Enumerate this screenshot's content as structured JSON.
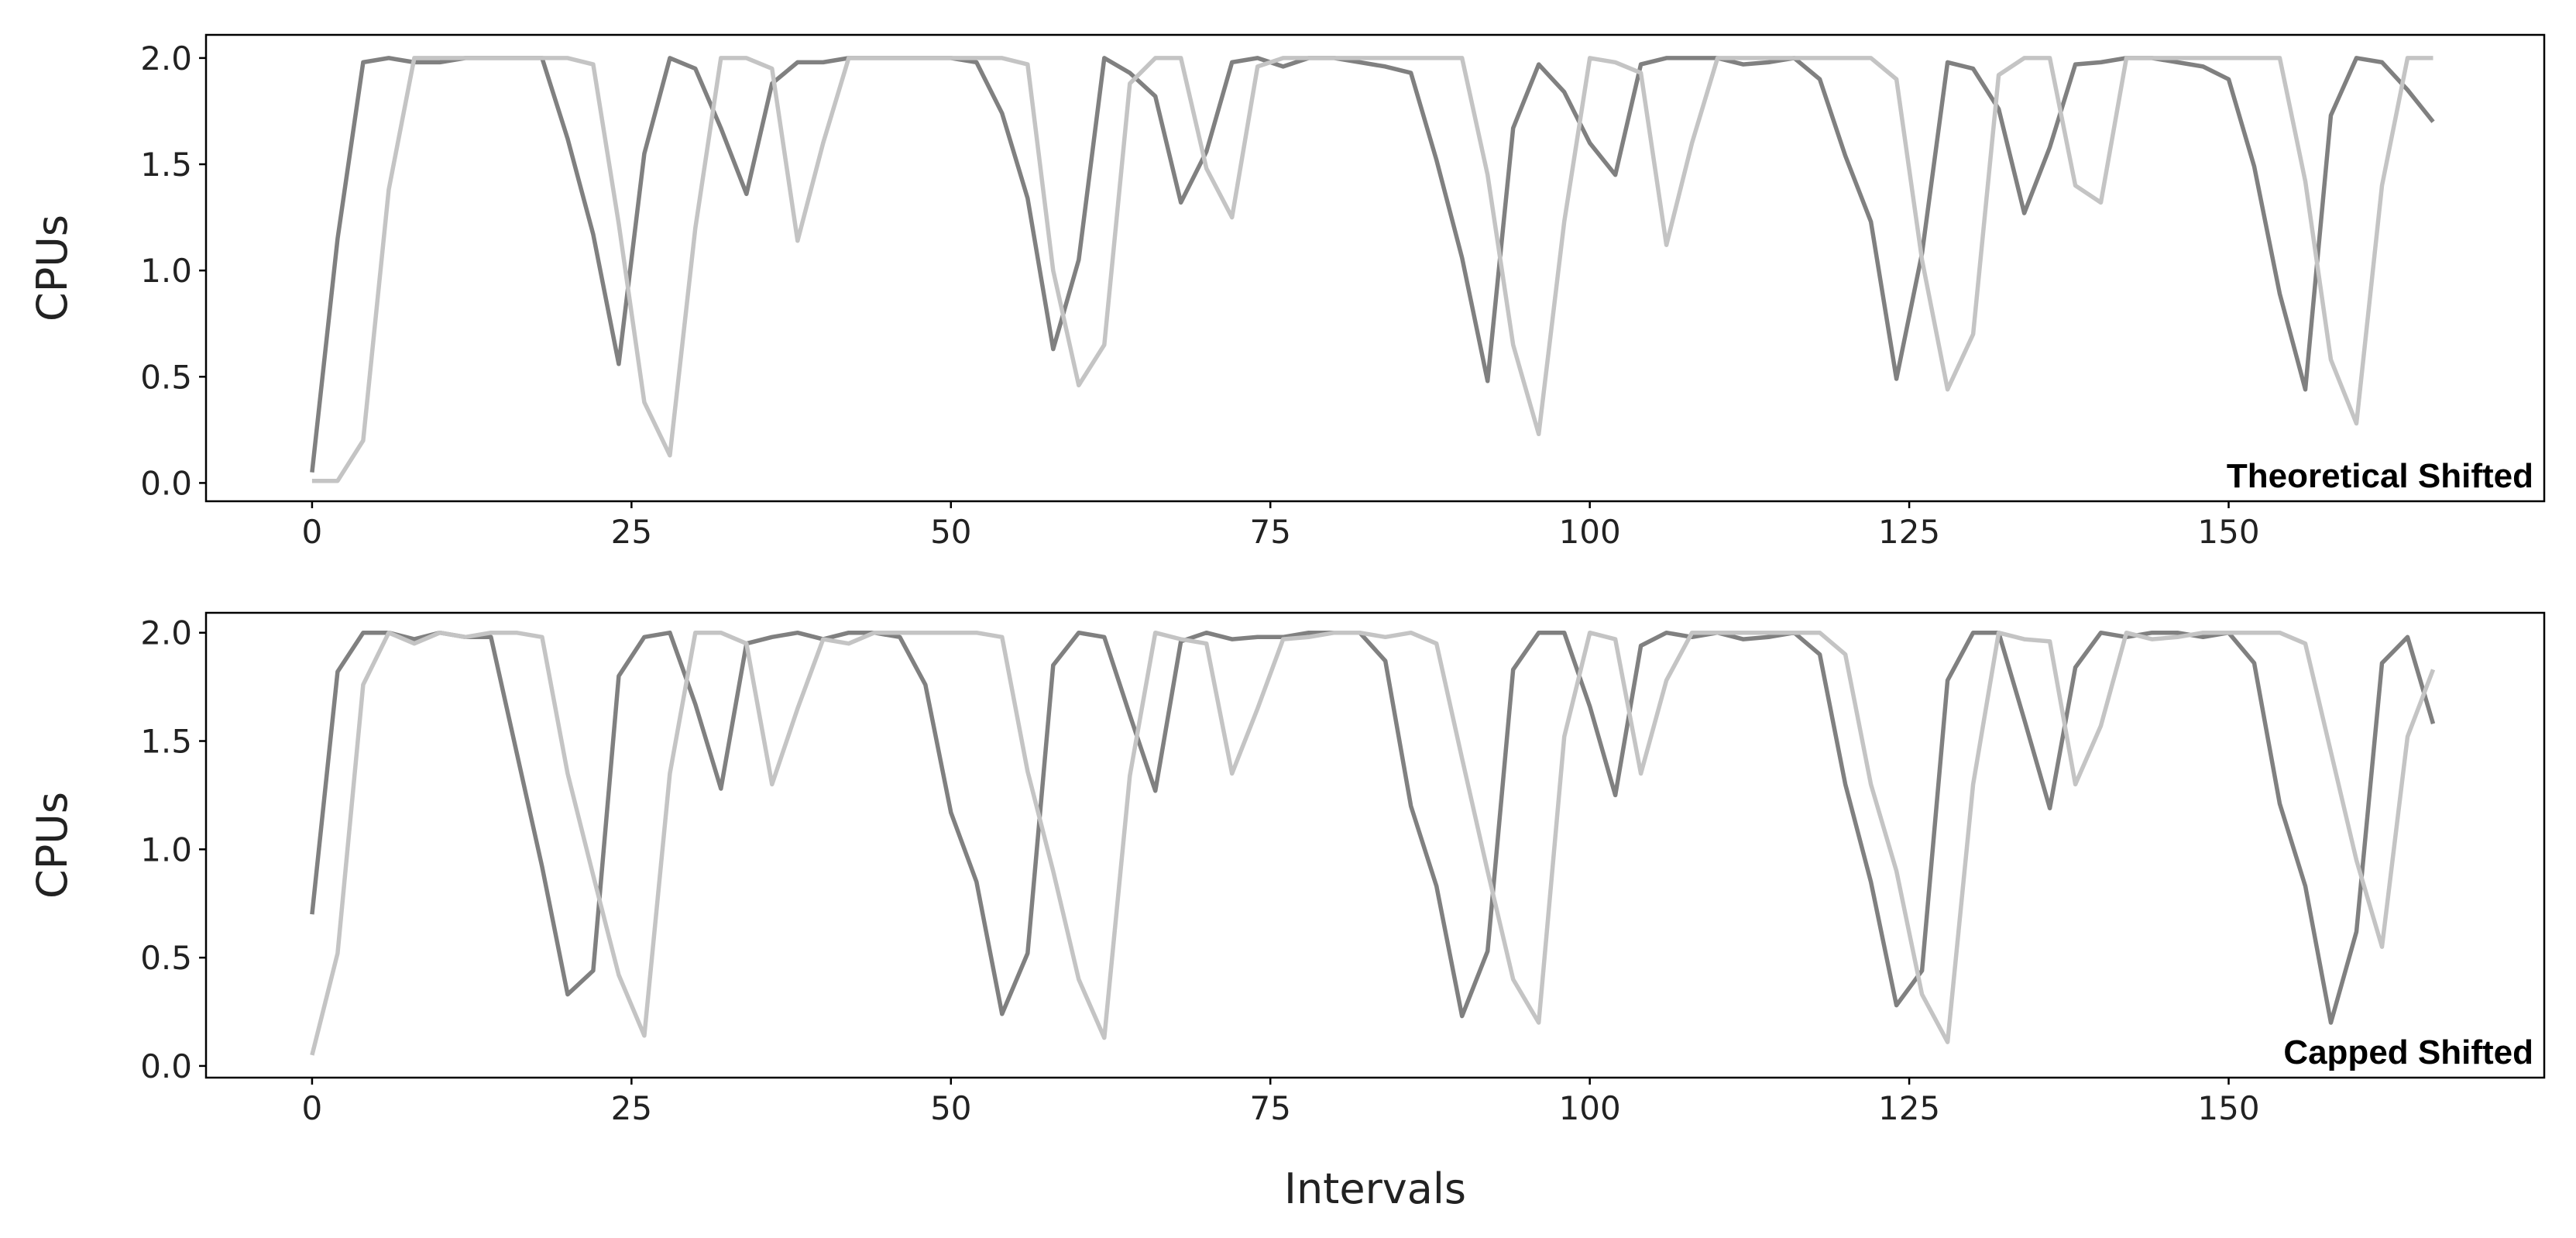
{
  "chart_data": [
    {
      "type": "line",
      "ylabel": "CPUs",
      "annotation": "Theoretical Shifted",
      "x": [
        0,
        2,
        4,
        6,
        8,
        10,
        12,
        14,
        16,
        18,
        20,
        22,
        24,
        26,
        28,
        30,
        32,
        34,
        36,
        38,
        40,
        42,
        44,
        46,
        48,
        50,
        52,
        54,
        56,
        58,
        60,
        62,
        64,
        66,
        68,
        70,
        72,
        74,
        76,
        78,
        80,
        82,
        84,
        86,
        88,
        90,
        92,
        94,
        96,
        98,
        100,
        102,
        104,
        106,
        108,
        110,
        112,
        114,
        116,
        118,
        120,
        122,
        124,
        126,
        128,
        130,
        132,
        134,
        136,
        138,
        140,
        142,
        144,
        146,
        148,
        150,
        152,
        154,
        156,
        158,
        160,
        162,
        164,
        166
      ],
      "series": [
        {
          "color": "#808080",
          "values": [
            0.05,
            1.15,
            1.98,
            2.0,
            1.98,
            1.98,
            2.0,
            2.0,
            2.0,
            2.0,
            1.62,
            1.17,
            0.56,
            1.55,
            2.0,
            1.95,
            1.67,
            1.36,
            1.88,
            1.98,
            1.98,
            2.0,
            2.0,
            2.0,
            2.0,
            2.0,
            1.98,
            1.74,
            1.34,
            0.63,
            1.05,
            2.0,
            1.93,
            1.82,
            1.32,
            1.56,
            1.98,
            2.0,
            1.96,
            2.0,
            2.0,
            1.98,
            1.96,
            1.93,
            1.52,
            1.06,
            0.48,
            1.67,
            1.97,
            1.84,
            1.6,
            1.45,
            1.97,
            2.0,
            2.0,
            2.0,
            1.97,
            1.98,
            2.0,
            1.9,
            1.54,
            1.23,
            0.49,
            1.08,
            1.98,
            1.95,
            1.76,
            1.27,
            1.58,
            1.97,
            1.98,
            2.0,
            2.0,
            1.98,
            1.96,
            1.9,
            1.49,
            0.89,
            0.44,
            1.73,
            2.0,
            1.98,
            1.85,
            1.7
          ]
        },
        {
          "color": "#c4c4c4",
          "values": [
            0.01,
            0.01,
            0.2,
            1.38,
            2.0,
            2.0,
            2.0,
            2.0,
            2.0,
            2.0,
            2.0,
            1.97,
            1.22,
            0.38,
            0.13,
            1.2,
            2.0,
            2.0,
            1.95,
            1.14,
            1.6,
            2.0,
            2.0,
            2.0,
            2.0,
            2.0,
            2.0,
            2.0,
            1.97,
            1.0,
            0.46,
            0.65,
            1.88,
            2.0,
            2.0,
            1.48,
            1.25,
            1.96,
            2.0,
            2.0,
            2.0,
            2.0,
            2.0,
            2.0,
            2.0,
            2.0,
            1.45,
            0.65,
            0.23,
            1.23,
            2.0,
            1.98,
            1.93,
            1.12,
            1.6,
            2.0,
            2.0,
            2.0,
            2.0,
            2.0,
            2.0,
            2.0,
            1.9,
            1.05,
            0.44,
            0.7,
            1.92,
            2.0,
            2.0,
            1.4,
            1.32,
            2.0,
            2.0,
            2.0,
            2.0,
            2.0,
            2.0,
            2.0,
            1.42,
            0.58,
            0.28,
            1.4,
            2.0,
            2.0
          ]
        }
      ],
      "xlim": [
        -8.3,
        174.7
      ],
      "xticks": [
        0,
        25,
        50,
        75,
        100,
        125,
        150
      ],
      "ylim": [
        -0.086,
        2.109
      ],
      "yticks": [
        {
          "value": 0,
          "label": "0.0"
        },
        0.5,
        {
          "value": 1,
          "label": "1.0"
        },
        1.5,
        {
          "value": 2,
          "label": "2.0"
        }
      ]
    },
    {
      "type": "line",
      "ylabel": "CPUs",
      "xlabel": "Intervals",
      "annotation": "Capped Shifted",
      "x": [
        0,
        2,
        4,
        6,
        8,
        10,
        12,
        14,
        16,
        18,
        20,
        22,
        24,
        26,
        28,
        30,
        32,
        34,
        36,
        38,
        40,
        42,
        44,
        46,
        48,
        50,
        52,
        54,
        56,
        58,
        60,
        62,
        64,
        66,
        68,
        70,
        72,
        74,
        76,
        78,
        80,
        82,
        84,
        86,
        88,
        90,
        92,
        94,
        96,
        98,
        100,
        102,
        104,
        106,
        108,
        110,
        112,
        114,
        116,
        118,
        120,
        122,
        124,
        126,
        128,
        130,
        132,
        134,
        136,
        138,
        140,
        142,
        144,
        146,
        148,
        150,
        152,
        154,
        156,
        158,
        160,
        162,
        164,
        166
      ],
      "series": [
        {
          "color": "#808080",
          "values": [
            0.7,
            1.82,
            2.0,
            2.0,
            1.97,
            2.0,
            1.98,
            1.98,
            1.45,
            0.92,
            0.33,
            0.44,
            1.8,
            1.98,
            2.0,
            1.67,
            1.28,
            1.95,
            1.98,
            2.0,
            1.97,
            2.0,
            2.0,
            1.98,
            1.76,
            1.17,
            0.85,
            0.24,
            0.52,
            1.85,
            2.0,
            1.98,
            1.62,
            1.27,
            1.96,
            2.0,
            1.97,
            1.98,
            1.98,
            2.0,
            2.0,
            2.0,
            1.87,
            1.2,
            0.83,
            0.23,
            0.53,
            1.83,
            2.0,
            2.0,
            1.66,
            1.25,
            1.94,
            2.0,
            1.98,
            2.0,
            1.97,
            1.98,
            2.0,
            1.9,
            1.3,
            0.85,
            0.28,
            0.44,
            1.78,
            2.0,
            2.0,
            1.6,
            1.19,
            1.84,
            2.0,
            1.98,
            2.0,
            2.0,
            1.98,
            2.0,
            1.86,
            1.21,
            0.83,
            0.2,
            0.62,
            1.86,
            1.98,
            1.58
          ]
        },
        {
          "color": "#c4c4c4",
          "values": [
            0.05,
            0.52,
            1.76,
            2.0,
            1.95,
            2.0,
            1.98,
            2.0,
            2.0,
            1.98,
            1.35,
            0.88,
            0.42,
            0.14,
            1.35,
            2.0,
            2.0,
            1.95,
            1.3,
            1.65,
            1.97,
            1.95,
            2.0,
            2.0,
            2.0,
            2.0,
            2.0,
            1.98,
            1.36,
            0.9,
            0.4,
            0.13,
            1.34,
            2.0,
            1.97,
            1.95,
            1.35,
            1.65,
            1.97,
            1.98,
            2.0,
            2.0,
            1.98,
            2.0,
            1.95,
            1.42,
            0.9,
            0.4,
            0.2,
            1.52,
            2.0,
            1.97,
            1.35,
            1.78,
            2.0,
            2.0,
            2.0,
            2.0,
            2.0,
            2.0,
            1.9,
            1.3,
            0.9,
            0.33,
            0.11,
            1.3,
            2.0,
            1.97,
            1.96,
            1.3,
            1.57,
            2.0,
            1.97,
            1.98,
            2.0,
            2.0,
            2.0,
            2.0,
            1.95,
            1.45,
            0.95,
            0.55,
            1.52,
            1.83
          ]
        }
      ],
      "xlim": [
        -8.3,
        174.7
      ],
      "xticks": [
        0,
        25,
        50,
        75,
        100,
        125,
        150
      ],
      "ylim": [
        -0.054,
        2.092
      ],
      "yticks": [
        {
          "value": 0,
          "label": "0.0"
        },
        0.5,
        {
          "value": 1,
          "label": "1.0"
        },
        1.5,
        {
          "value": 2,
          "label": "2.0"
        }
      ]
    }
  ]
}
